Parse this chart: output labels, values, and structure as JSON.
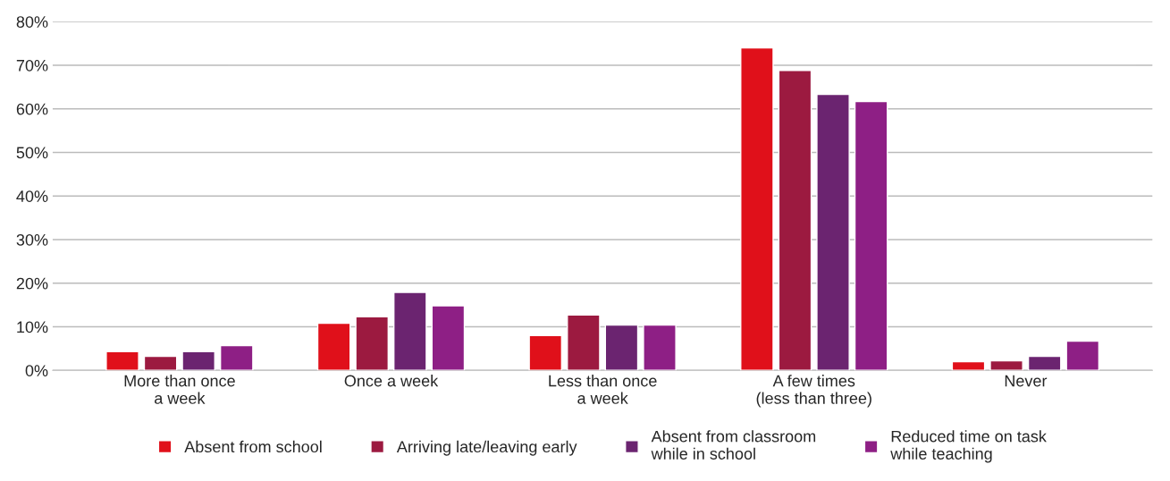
{
  "chart_data": {
    "type": "bar",
    "categories": [
      "More than once\na week",
      "Once a week",
      "Less than once\na week",
      "A few times\n(less than three)",
      "Never"
    ],
    "series": [
      {
        "name": "Absent from school",
        "color": "#e0101a",
        "values": [
          4.3,
          10.8,
          8.0,
          74.0,
          2.0
        ]
      },
      {
        "name": "Arriving late/leaving early",
        "color": "#9c1a40",
        "values": [
          3.2,
          12.3,
          12.7,
          68.8,
          2.2
        ]
      },
      {
        "name": "Absent from classroom\nwhile in school",
        "color": "#6b2470",
        "values": [
          4.3,
          17.9,
          10.4,
          63.3,
          3.2
        ]
      },
      {
        "name": "Reduced time on task\nwhile teaching",
        "color": "#8e1f85",
        "values": [
          5.7,
          14.8,
          10.4,
          61.7,
          6.7
        ]
      }
    ],
    "ylim": [
      0,
      80
    ],
    "yticks": [
      {
        "value": 0,
        "label": "0%"
      },
      {
        "value": 10,
        "label": "10%"
      },
      {
        "value": 20,
        "label": "20%"
      },
      {
        "value": 30,
        "label": "30%"
      },
      {
        "value": 40,
        "label": "40%"
      },
      {
        "value": 50,
        "label": "50%"
      },
      {
        "value": 60,
        "label": "60%"
      },
      {
        "value": 70,
        "label": "70%"
      },
      {
        "value": 80,
        "label": "80%"
      }
    ],
    "grid": "y",
    "legend": "bottom"
  }
}
